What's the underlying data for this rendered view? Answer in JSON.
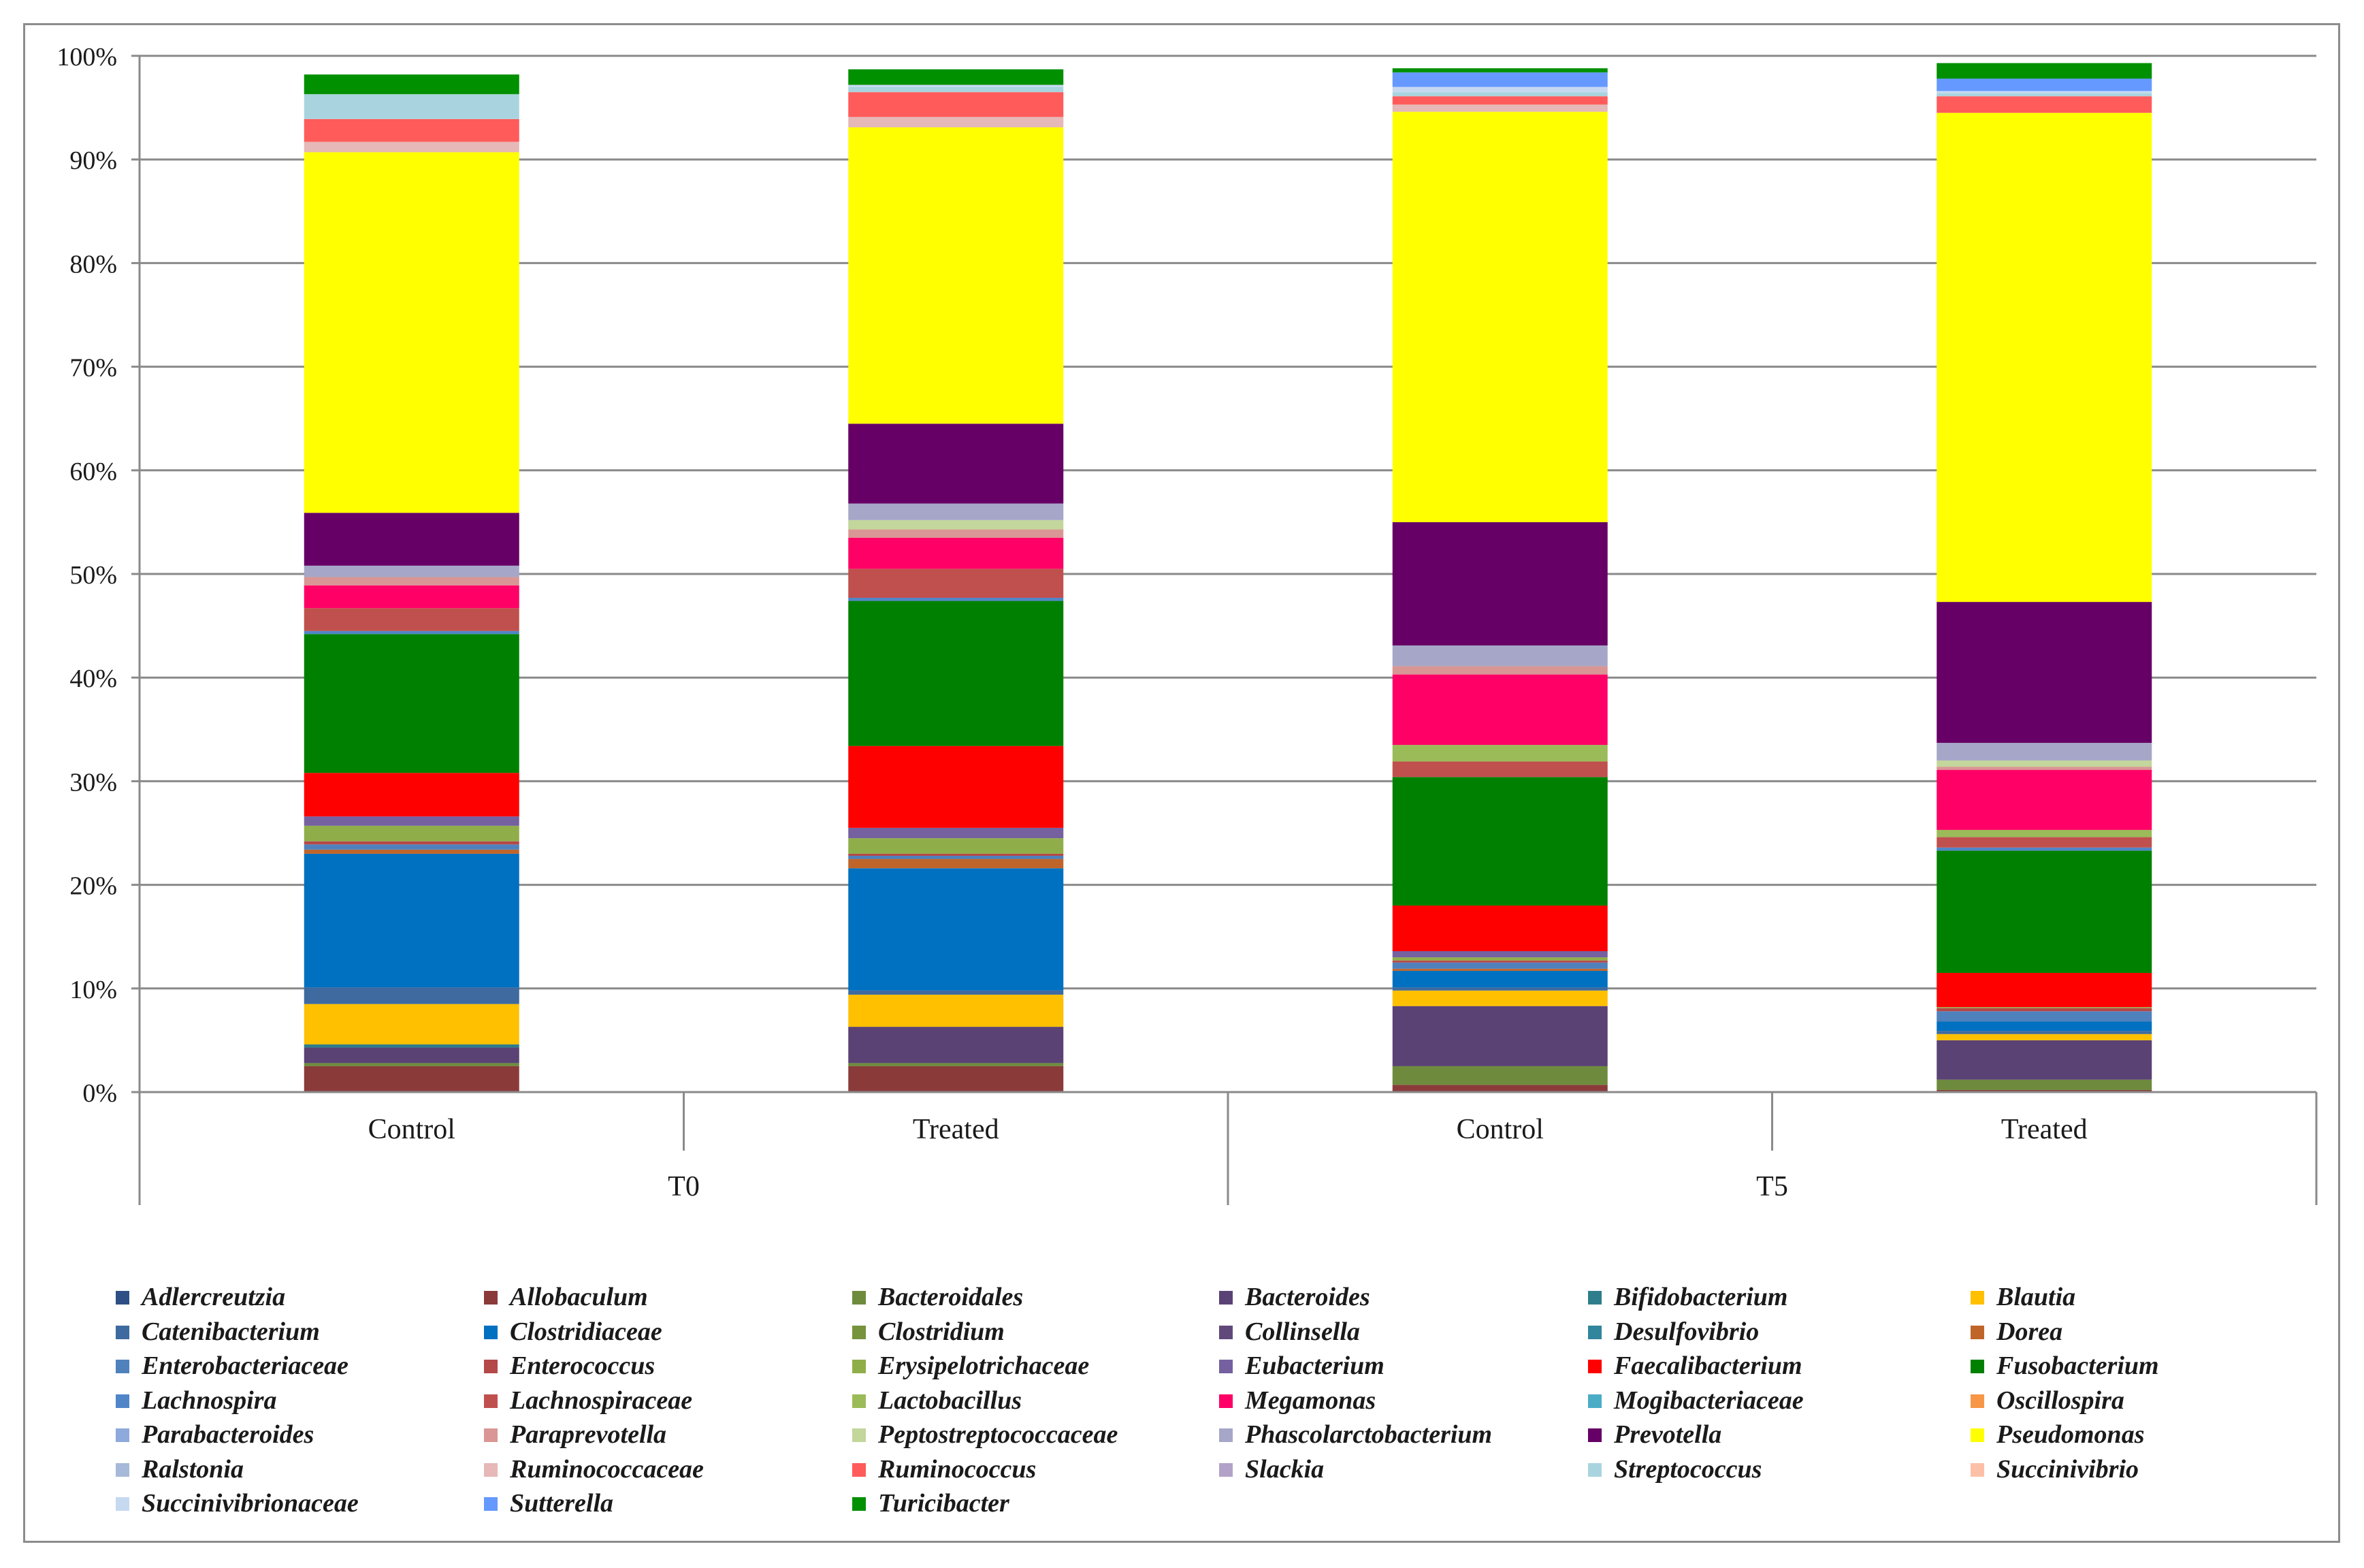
{
  "chart_data": {
    "type": "bar",
    "stacked": true,
    "percent": true,
    "title": "",
    "xlabel": "",
    "ylabel": "",
    "ylim": [
      0,
      100
    ],
    "y_ticks": [
      "0%",
      "10%",
      "20%",
      "30%",
      "40%",
      "50%",
      "60%",
      "70%",
      "80%",
      "90%",
      "100%"
    ],
    "categories": [
      "Control",
      "Treated",
      "Control",
      "Treated"
    ],
    "groups": [
      {
        "label": "T0",
        "span": [
          0,
          1
        ]
      },
      {
        "label": "T5",
        "span": [
          2,
          3
        ]
      }
    ],
    "grid": true,
    "legend_position": "bottom",
    "series": [
      {
        "name": "Adlercreutzia",
        "color": "#2E4F86",
        "values": [
          0.0,
          0.0,
          0.0,
          0.0
        ]
      },
      {
        "name": "Allobaculum",
        "color": "#8B3A3A",
        "values": [
          2.5,
          2.5,
          0.7,
          0.2
        ]
      },
      {
        "name": "Bacteroidales",
        "color": "#6E8B3D",
        "values": [
          0.3,
          0.3,
          1.8,
          1.0
        ]
      },
      {
        "name": "Bacteroides",
        "color": "#5A4275",
        "values": [
          1.5,
          3.5,
          5.8,
          3.8
        ]
      },
      {
        "name": "Bifidobacterium",
        "color": "#2E7D8C",
        "values": [
          0.3,
          0.0,
          0.0,
          0.0
        ]
      },
      {
        "name": "Blautia",
        "color": "#FFC000",
        "values": [
          3.9,
          3.1,
          1.5,
          0.6
        ]
      },
      {
        "name": "Catenibacterium",
        "color": "#3E6AA0",
        "values": [
          1.6,
          0.4,
          0.3,
          0.3
        ]
      },
      {
        "name": "Clostridiaceae",
        "color": "#0070C0",
        "values": [
          12.9,
          11.8,
          1.6,
          0.9
        ]
      },
      {
        "name": "Clostridium",
        "color": "#77933C",
        "values": [
          0.0,
          0.0,
          0.0,
          0.0
        ]
      },
      {
        "name": "Collinsella",
        "color": "#60497A",
        "values": [
          0.0,
          0.0,
          0.0,
          0.0
        ]
      },
      {
        "name": "Desulfovibrio",
        "color": "#31859C",
        "values": [
          0.0,
          0.0,
          0.0,
          0.0
        ]
      },
      {
        "name": "Dorea",
        "color": "#C0652A",
        "values": [
          0.4,
          0.9,
          0.2,
          0.0
        ]
      },
      {
        "name": "Enterobacteriaceae",
        "color": "#4F81BD",
        "values": [
          0.5,
          0.3,
          0.6,
          1.0
        ]
      },
      {
        "name": "Enterococcus",
        "color": "#B54848",
        "values": [
          0.3,
          0.2,
          0.2,
          0.3
        ]
      },
      {
        "name": "Erysipelotrichaceae",
        "color": "#8FAE4A",
        "values": [
          1.5,
          1.5,
          0.3,
          0.1
        ]
      },
      {
        "name": "Eubacterium",
        "color": "#7560A0",
        "values": [
          0.9,
          1.0,
          0.6,
          0.0
        ]
      },
      {
        "name": "Faecalibacterium",
        "color": "#FF0000",
        "values": [
          4.2,
          7.9,
          4.4,
          3.3
        ]
      },
      {
        "name": "Fusobacterium",
        "color": "#008000",
        "values": [
          13.4,
          14.0,
          12.4,
          11.8
        ]
      },
      {
        "name": "Lachnospira",
        "color": "#5086C8",
        "values": [
          0.3,
          0.3,
          0.0,
          0.3
        ]
      },
      {
        "name": "Lachnospiraceae",
        "color": "#C0504D",
        "values": [
          2.2,
          2.8,
          1.5,
          1.0
        ]
      },
      {
        "name": "Lactobacillus",
        "color": "#9BBB59",
        "values": [
          0.0,
          0.0,
          1.6,
          0.7
        ]
      },
      {
        "name": "Megamonas",
        "color": "#FF0066",
        "values": [
          2.2,
          3.0,
          6.8,
          5.8
        ]
      },
      {
        "name": "Mogibacteriaceae",
        "color": "#4BACC6",
        "values": [
          0.0,
          0.0,
          0.0,
          0.0
        ]
      },
      {
        "name": "Oscillospira",
        "color": "#F79646",
        "values": [
          0.0,
          0.0,
          0.0,
          0.0
        ]
      },
      {
        "name": "Parabacteroides",
        "color": "#8EA9DB",
        "values": [
          0.0,
          0.0,
          0.0,
          0.0
        ]
      },
      {
        "name": "Paraprevotella",
        "color": "#D99694",
        "values": [
          0.8,
          0.8,
          0.8,
          0.3
        ]
      },
      {
        "name": "Peptostreptococcaceae",
        "color": "#C3D69B",
        "values": [
          0.0,
          0.9,
          0.0,
          0.6
        ]
      },
      {
        "name": "Phascolarctobacterium",
        "color": "#A6A6C8",
        "values": [
          1.1,
          1.6,
          2.0,
          1.7
        ]
      },
      {
        "name": "Prevotella",
        "color": "#660066",
        "values": [
          5.1,
          7.7,
          11.9,
          13.6
        ]
      },
      {
        "name": "Pseudomonas",
        "color": "#FFFF00",
        "values": [
          34.8,
          28.6,
          39.6,
          47.2
        ]
      },
      {
        "name": "Ralstonia",
        "color": "#A7B9D9",
        "values": [
          0.0,
          0.0,
          0.0,
          0.0
        ]
      },
      {
        "name": "Ruminococcaceae",
        "color": "#E6B8B7",
        "values": [
          1.0,
          1.0,
          0.7,
          0.0
        ]
      },
      {
        "name": "Ruminococcus",
        "color": "#FF5B5B",
        "values": [
          2.2,
          2.4,
          0.8,
          1.6
        ]
      },
      {
        "name": "Slackia",
        "color": "#B3A2C7",
        "values": [
          0.0,
          0.0,
          0.0,
          0.0
        ]
      },
      {
        "name": "Streptococcus",
        "color": "#A9D4DF",
        "values": [
          2.4,
          0.5,
          0.4,
          0.3
        ]
      },
      {
        "name": "Succinivibrio",
        "color": "#FCC0A8",
        "values": [
          0.0,
          0.0,
          0.0,
          0.0
        ]
      },
      {
        "name": "Succinivibrionaceae",
        "color": "#C6D9F1",
        "values": [
          0.0,
          0.2,
          0.5,
          0.2
        ]
      },
      {
        "name": "Sutterella",
        "color": "#6699FF",
        "values": [
          0.0,
          0.0,
          1.4,
          1.2
        ]
      },
      {
        "name": "Turicibacter",
        "color": "#009000",
        "values": [
          1.9,
          1.5,
          0.4,
          1.5
        ]
      }
    ]
  }
}
